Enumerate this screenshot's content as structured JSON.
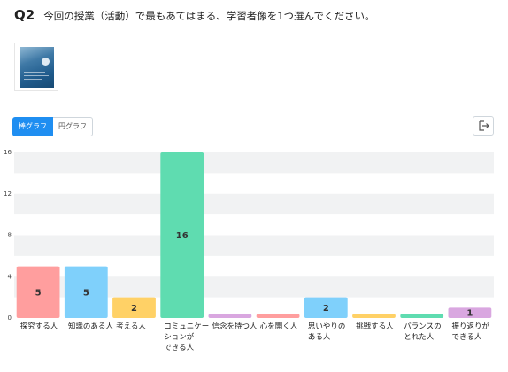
{
  "question": {
    "number": "Q2",
    "text": "今回の授業（活動）で最もあてはまる、学習者像を1つ選んでください。"
  },
  "toolbar": {
    "bar_tab": "棒グラフ",
    "pie_tab": "円グラフ",
    "export_icon": "export-icon"
  },
  "chart_data": {
    "type": "bar",
    "title": "",
    "xlabel": "",
    "ylabel": "",
    "ylim": [
      0,
      16
    ],
    "yticks": [
      0,
      4,
      8,
      12,
      16
    ],
    "grid": true,
    "categories": [
      [
        "探究する人"
      ],
      [
        "知識のある人"
      ],
      [
        "考える人"
      ],
      [
        "コミュニケー",
        "ションが",
        "できる人"
      ],
      [
        "信念を持つ人"
      ],
      [
        "心を開く人"
      ],
      [
        "思いやりの",
        "ある人"
      ],
      [
        "挑戦する人"
      ],
      [
        "バランスの",
        "とれた人"
      ],
      [
        "振り返りが",
        "できる人"
      ]
    ],
    "values": [
      5,
      5,
      2,
      16,
      0,
      0,
      2,
      0,
      0,
      1
    ],
    "colors": [
      "#ff9e9e",
      "#7fd0fb",
      "#ffd166",
      "#5fdcb0",
      "#d9a7e0",
      "#ff9e9e",
      "#7fd0fb",
      "#ffd166",
      "#5fdcb0",
      "#d9a7e0"
    ]
  }
}
